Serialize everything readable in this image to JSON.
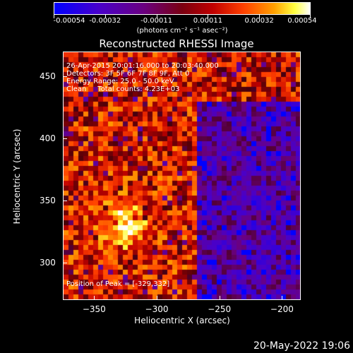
{
  "colorbar": {
    "tick_labels": [
      "-0.00054",
      "-0.00032",
      "-0.00011",
      "0.00011",
      "0.00032",
      "0.00054"
    ],
    "unit_label": "(photons cm⁻² s⁻¹ asec⁻²)",
    "range": [
      -0.00054,
      0.00054
    ]
  },
  "title": "Reconstructed RHESSI Image",
  "info_lines": [
    "26-Apr-2015 20:01:16.000 to 20:03:40.000",
    "Detectors: 3F 5F 6F 7F 8F 9F, Att 0",
    "Energy Range: 25.0 - 50.0 keV",
    "Clean     Total counts: 4.23E+03"
  ],
  "peak_label": "Position of Peak = [-329,332]",
  "xaxis": {
    "title": "Heliocentric X (arcsec)",
    "ticks": [
      -350,
      -300,
      -250,
      -200
    ],
    "range": [
      -375,
      -185
    ]
  },
  "yaxis": {
    "title": "Heliocentric Y (arcsec)",
    "ticks": [
      300,
      350,
      400,
      450
    ],
    "range": [
      270,
      470
    ]
  },
  "footer": "20-May-2022 19:06"
}
